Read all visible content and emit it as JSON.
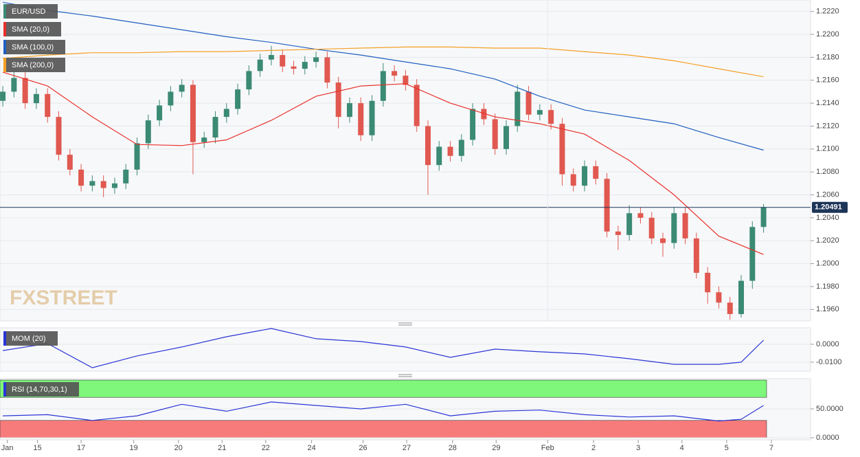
{
  "chart_data": [
    {
      "type": "candlestick",
      "title": "EUR/USD",
      "watermark": "FXSTREET",
      "grid": true,
      "up_color": "#3b8a74",
      "down_color": "#e0584f",
      "open": [
        1.2142,
        1.215,
        1.2162,
        1.214,
        1.2148,
        1.2128,
        1.2095,
        1.2082,
        1.2068,
        1.2072,
        1.2066,
        1.207,
        1.2082,
        1.2105,
        1.2125,
        1.2138,
        1.215,
        1.2156,
        1.2106,
        1.211,
        1.2128,
        1.2135,
        1.2152,
        1.2168,
        1.2178,
        1.2182,
        1.2172,
        1.217,
        1.2176,
        1.218,
        1.2158,
        1.2128,
        1.214,
        1.2112,
        1.2142,
        1.2168,
        1.2164,
        1.2156,
        1.212,
        1.2086,
        1.2102,
        1.2094,
        1.2108,
        1.2135,
        1.2126,
        1.21,
        1.212,
        1.215,
        1.213,
        1.2134,
        1.2122,
        1.2078,
        1.2068,
        1.2085,
        1.2074,
        1.2028,
        1.2025,
        1.2044,
        1.204,
        1.2022,
        1.2018,
        1.2044,
        1.2022,
        1.1992,
        1.1975,
        1.1966,
        1.1956,
        1.1985,
        1.2032
      ],
      "high": [
        1.2155,
        1.2167,
        1.2167,
        1.2153,
        1.2153,
        1.2133,
        1.21,
        1.2087,
        1.2077,
        1.2077,
        1.2075,
        1.2087,
        1.211,
        1.213,
        1.2143,
        1.2155,
        1.2161,
        1.216,
        1.2115,
        1.2133,
        1.214,
        1.2157,
        1.2173,
        1.2183,
        1.219,
        1.2187,
        1.2177,
        1.2181,
        1.2185,
        1.2185,
        1.2163,
        1.2145,
        1.2145,
        1.2147,
        1.2175,
        1.2173,
        1.2169,
        1.2161,
        1.2125,
        1.2107,
        1.2107,
        1.2113,
        1.214,
        1.214,
        1.2131,
        1.2125,
        1.2156,
        1.2155,
        1.2139,
        1.2139,
        1.2127,
        1.2083,
        1.209,
        1.209,
        1.2079,
        1.2033,
        1.2051,
        1.2049,
        1.2045,
        1.2027,
        1.2049,
        1.2049,
        1.2027,
        1.1997,
        1.198,
        1.1971,
        1.199,
        1.2037,
        1.2052
      ],
      "low": [
        1.2137,
        1.2145,
        1.2135,
        1.2135,
        1.2123,
        1.209,
        1.2077,
        1.2063,
        1.2063,
        1.2058,
        1.2061,
        1.2065,
        1.2077,
        1.21,
        1.212,
        1.2133,
        1.2145,
        1.2078,
        1.2101,
        1.2105,
        1.2123,
        1.213,
        1.2147,
        1.2163,
        1.2173,
        1.2167,
        1.2165,
        1.2165,
        1.2171,
        1.2153,
        1.2118,
        1.2123,
        1.2107,
        1.2107,
        1.2137,
        1.2159,
        1.2151,
        1.2115,
        1.206,
        1.2081,
        1.2089,
        1.2089,
        1.2103,
        1.2121,
        1.2095,
        1.2095,
        1.2115,
        1.2125,
        1.2125,
        1.2117,
        1.2068,
        1.2063,
        1.2063,
        1.2069,
        1.2023,
        1.2012,
        1.202,
        1.2035,
        1.2017,
        1.2006,
        1.2013,
        1.2017,
        1.1987,
        1.1965,
        1.1961,
        1.1951,
        1.1953,
        1.1978,
        1.2027
      ],
      "close": [
        1.215,
        1.2162,
        1.214,
        1.2148,
        1.2128,
        1.2095,
        1.2082,
        1.2068,
        1.2072,
        1.2066,
        1.207,
        1.2082,
        1.2105,
        1.2125,
        1.2138,
        1.215,
        1.2156,
        1.2106,
        1.211,
        1.2128,
        1.2135,
        1.2152,
        1.2168,
        1.2178,
        1.2182,
        1.2172,
        1.217,
        1.2176,
        1.218,
        1.2158,
        1.2128,
        1.214,
        1.2112,
        1.2142,
        1.2168,
        1.2164,
        1.2156,
        1.212,
        1.2086,
        1.2102,
        1.2094,
        1.2108,
        1.2135,
        1.2126,
        1.21,
        1.212,
        1.215,
        1.213,
        1.2134,
        1.2122,
        1.2078,
        1.2068,
        1.2085,
        1.2074,
        1.2028,
        1.2025,
        1.2044,
        1.204,
        1.2022,
        1.2018,
        1.2044,
        1.2022,
        1.1992,
        1.1975,
        1.1966,
        1.1956,
        1.1985,
        1.2032,
        1.2049
      ],
      "series": [
        {
          "name": "SMA (20,0)",
          "color": "#e8302a",
          "x": [
            0,
            4,
            8,
            12,
            16,
            20,
            24,
            28,
            32,
            36,
            40,
            44,
            48,
            52,
            56,
            60,
            64,
            68
          ],
          "values": [
            1.2167,
            1.2155,
            1.2128,
            1.2104,
            1.2103,
            1.2108,
            1.2125,
            1.2146,
            1.2155,
            1.2157,
            1.214,
            1.2128,
            1.2122,
            1.2113,
            1.209,
            1.206,
            1.2024,
            1.2008
          ]
        },
        {
          "name": "SMA (100,0)",
          "color": "#1f5fbf",
          "x": [
            0,
            4,
            8,
            12,
            16,
            20,
            24,
            28,
            32,
            36,
            40,
            44,
            48,
            52,
            56,
            60,
            64,
            68
          ],
          "values": [
            1.2228,
            1.2221,
            1.2216,
            1.221,
            1.2204,
            1.2198,
            1.2193,
            1.2187,
            1.2182,
            1.2176,
            1.217,
            1.2161,
            1.2146,
            1.2134,
            1.2128,
            1.2122,
            1.211,
            1.2099
          ]
        },
        {
          "name": "SMA (200,0)",
          "color": "#f4a024",
          "x": [
            0,
            4,
            8,
            12,
            16,
            20,
            24,
            28,
            32,
            36,
            40,
            44,
            48,
            52,
            56,
            60,
            64,
            68
          ],
          "values": [
            1.2179,
            1.2182,
            1.2184,
            1.2184,
            1.2185,
            1.2185,
            1.2186,
            1.2187,
            1.2188,
            1.2189,
            1.2189,
            1.2188,
            1.2188,
            1.2185,
            1.2182,
            1.2177,
            1.217,
            1.2163
          ]
        }
      ],
      "last_price": 1.20491,
      "ylim": [
        1.195,
        1.223
      ],
      "yticks": [
        {
          "value": 1.222,
          "label": "1.2220"
        },
        {
          "value": 1.22,
          "label": "1.2200"
        },
        {
          "value": 1.218,
          "label": "1.2180"
        },
        {
          "value": 1.216,
          "label": "1.2160"
        },
        {
          "value": 1.214,
          "label": "1.2140"
        },
        {
          "value": 1.212,
          "label": "1.2120"
        },
        {
          "value": 1.21,
          "label": "1.2100"
        },
        {
          "value": 1.208,
          "label": "1.2080"
        },
        {
          "value": 1.206,
          "label": "1.2060"
        },
        {
          "value": 1.204,
          "label": "1.2040"
        },
        {
          "value": 1.202,
          "label": "1.2020"
        },
        {
          "value": 1.2,
          "label": "1.2000"
        },
        {
          "value": 1.198,
          "label": "1.1980"
        },
        {
          "value": 1.196,
          "label": "1.1960"
        }
      ],
      "xlim": [
        -0.25,
        72.2
      ],
      "xticks": [
        {
          "value": 0.4,
          "label": "Jan"
        },
        {
          "value": 3.1,
          "label": "15"
        },
        {
          "value": 7.0,
          "label": "17"
        },
        {
          "value": 11.7,
          "label": "19"
        },
        {
          "value": 15.7,
          "label": "20"
        },
        {
          "value": 19.6,
          "label": "21"
        },
        {
          "value": 23.5,
          "label": "22"
        },
        {
          "value": 27.6,
          "label": "24"
        },
        {
          "value": 32.2,
          "label": "26"
        },
        {
          "value": 36.1,
          "label": "27"
        },
        {
          "value": 40.2,
          "label": "28"
        },
        {
          "value": 44.1,
          "label": "29"
        },
        {
          "value": 48.7,
          "label": "Feb"
        },
        {
          "value": 52.8,
          "label": "2"
        },
        {
          "value": 56.8,
          "label": "3"
        },
        {
          "value": 60.7,
          "label": "4"
        },
        {
          "value": 64.7,
          "label": "5"
        },
        {
          "value": 68.7,
          "label": "7"
        }
      ]
    },
    {
      "type": "line",
      "series": [
        {
          "name": "MOM (20)",
          "color": "#2a35d6",
          "x": [
            0,
            4,
            8,
            12,
            16,
            20,
            24,
            28,
            32,
            36,
            40,
            44,
            48,
            52,
            56,
            60,
            64,
            66,
            68
          ],
          "values": [
            -0.0035,
            0.0004,
            -0.0131,
            -0.0065,
            -0.0015,
            0.0042,
            0.0088,
            0.0031,
            0.0015,
            -0.0015,
            -0.0073,
            -0.0027,
            -0.0042,
            -0.0054,
            -0.0081,
            -0.0112,
            -0.0112,
            -0.01,
            0.0023
          ]
        }
      ],
      "ylim": [
        -0.015,
        0.0092
      ],
      "yticks": [
        {
          "value": 0,
          "label": "0.0000"
        },
        {
          "value": -0.01,
          "label": "-0.0100"
        }
      ]
    },
    {
      "type": "line",
      "series": [
        {
          "name": "RSI (14,70,30,1)",
          "color": "#2a35d6",
          "x": [
            0,
            4,
            8,
            12,
            16,
            20,
            24,
            28,
            32,
            36,
            40,
            44,
            48,
            52,
            56,
            60,
            64,
            66,
            68
          ],
          "values": [
            38,
            40,
            30,
            38,
            58,
            46,
            62,
            56,
            50,
            58,
            38,
            46,
            48,
            40,
            36,
            38,
            29,
            32,
            56
          ]
        }
      ],
      "bands": [
        {
          "from": 70,
          "to": 100,
          "color": "#7ef77a"
        },
        {
          "from": 0,
          "to": 30,
          "color": "#f77b7b"
        }
      ],
      "ylim": [
        -3.6,
        102.4
      ],
      "yticks": [
        {
          "value": 50,
          "label": "50.0000"
        },
        {
          "value": 0,
          "label": "0.0000"
        }
      ]
    }
  ]
}
